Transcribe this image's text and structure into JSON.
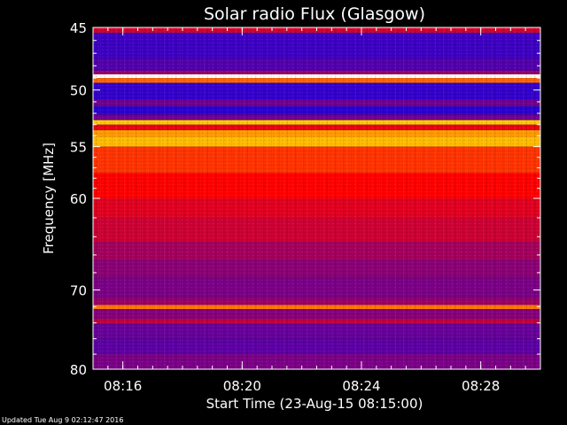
{
  "chart_data": {
    "type": "heatmap",
    "title": "Solar radio Flux (Glasgow)",
    "xlabel": "Start Time (23-Aug-15 08:15:00)",
    "ylabel": "Frequency [MHz]",
    "x_axis": {
      "kind": "time",
      "range": [
        "08:15:00",
        "08:30:00"
      ],
      "ticks": [
        {
          "value": "08:16:00",
          "label": "08:16"
        },
        {
          "value": "08:20:00",
          "label": "08:20"
        },
        {
          "value": "08:24:00",
          "label": "08:24"
        },
        {
          "value": "08:28:00",
          "label": "08:28"
        }
      ],
      "minor_tick_interval_seconds": 30
    },
    "y_axis": {
      "scale": "log",
      "range": [
        45,
        80
      ],
      "inverted": true,
      "units": "MHz",
      "ticks": [
        45,
        50,
        55,
        60,
        70,
        80
      ],
      "minor_ticks": [
        46,
        47,
        48,
        49,
        51,
        52,
        53,
        54,
        56,
        57,
        58,
        59,
        62,
        64,
        66,
        68,
        72,
        74,
        76,
        78
      ]
    },
    "colors": {
      "background": "#000000",
      "low": "#0000ff",
      "mid": "#ff0000",
      "high": "#ffff00",
      "peak": "#ffffff"
    },
    "bands": [
      {
        "from": 45.0,
        "to": 45.4,
        "level": 0.42
      },
      {
        "from": 45.4,
        "to": 47.4,
        "level": 0.12
      },
      {
        "from": 47.4,
        "to": 48.4,
        "level": 0.16
      },
      {
        "from": 48.4,
        "to": 48.7,
        "level": 0.3
      },
      {
        "from": 48.7,
        "to": 49.0,
        "level": 1.0
      },
      {
        "from": 49.0,
        "to": 49.4,
        "level": 0.62
      },
      {
        "from": 49.4,
        "to": 50.8,
        "level": 0.1
      },
      {
        "from": 50.8,
        "to": 51.4,
        "level": 0.22
      },
      {
        "from": 51.4,
        "to": 52.1,
        "level": 0.08
      },
      {
        "from": 52.1,
        "to": 52.6,
        "level": 0.22
      },
      {
        "from": 52.6,
        "to": 53.0,
        "level": 0.74
      },
      {
        "from": 53.0,
        "to": 53.5,
        "level": 0.46
      },
      {
        "from": 53.5,
        "to": 54.1,
        "level": 0.68
      },
      {
        "from": 54.1,
        "to": 55.0,
        "level": 0.72
      },
      {
        "from": 55.0,
        "to": 57.5,
        "level": 0.56
      },
      {
        "from": 57.5,
        "to": 60.0,
        "level": 0.5
      },
      {
        "from": 60.0,
        "to": 62.0,
        "level": 0.44
      },
      {
        "from": 62.0,
        "to": 64.5,
        "level": 0.4
      },
      {
        "from": 64.5,
        "to": 66.5,
        "level": 0.32
      },
      {
        "from": 66.5,
        "to": 68.5,
        "level": 0.27
      },
      {
        "from": 68.5,
        "to": 71.0,
        "level": 0.24
      },
      {
        "from": 71.0,
        "to": 71.8,
        "level": 0.3
      },
      {
        "from": 71.8,
        "to": 72.3,
        "level": 0.64
      },
      {
        "from": 72.3,
        "to": 73.5,
        "level": 0.26
      },
      {
        "from": 73.5,
        "to": 74.1,
        "level": 0.38
      },
      {
        "from": 74.1,
        "to": 76.0,
        "level": 0.2
      },
      {
        "from": 76.0,
        "to": 78.0,
        "level": 0.18
      },
      {
        "from": 78.0,
        "to": 80.0,
        "level": 0.24
      }
    ],
    "grid": false,
    "legend": "none"
  },
  "footer": {
    "updated": "Updated Tue Aug  9 02:12:47 2016"
  }
}
